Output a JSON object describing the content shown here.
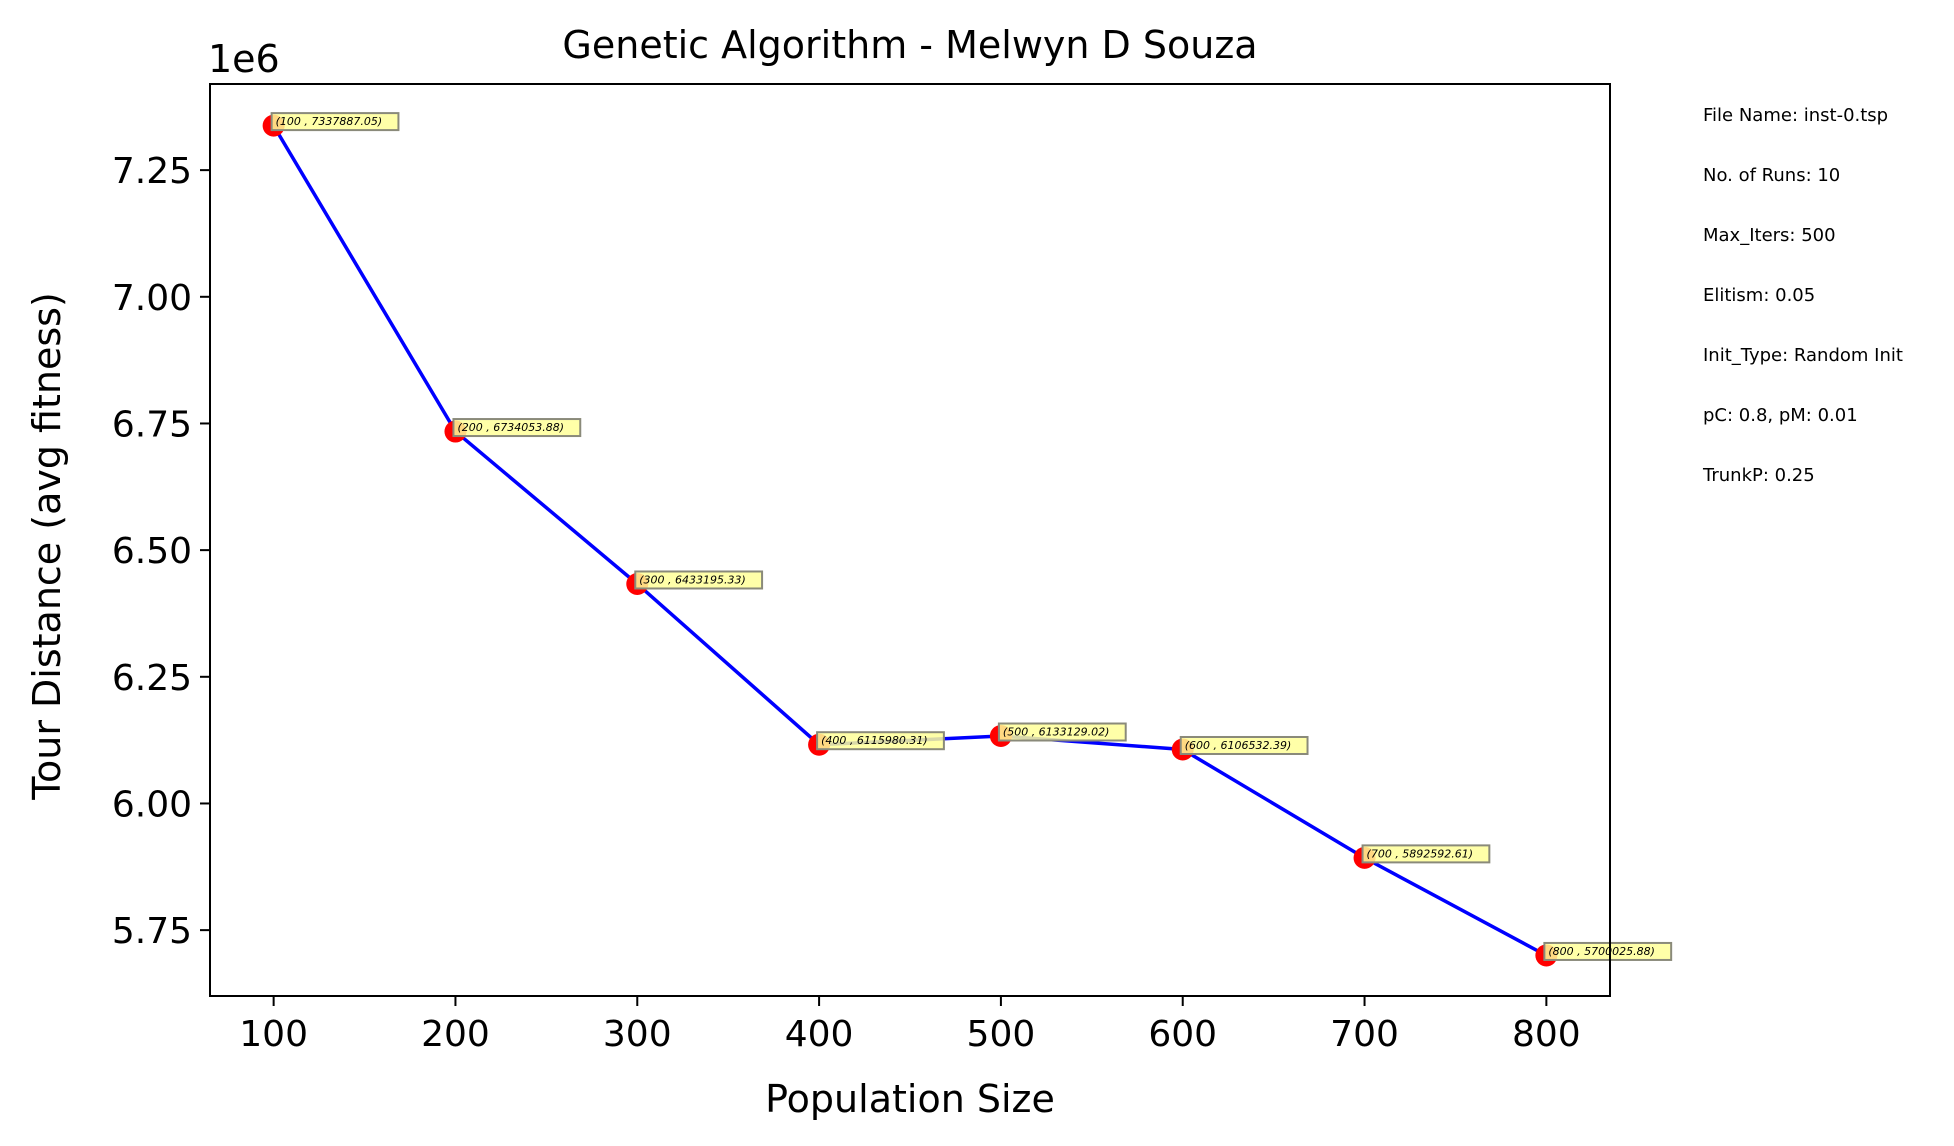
{
  "chart_data": {
    "type": "line",
    "title": "Genetic Algorithm - Melwyn D Souza",
    "xlabel": "Population Size",
    "ylabel": "Tour Distance (avg fitness)",
    "y_offset_label": "1e6",
    "xlim": [
      65,
      835
    ],
    "ylim": [
      5620000,
      7420000
    ],
    "x_ticks": [
      100,
      200,
      300,
      400,
      500,
      600,
      700,
      800
    ],
    "x_tick_labels": [
      "100",
      "200",
      "300",
      "400",
      "500",
      "600",
      "700",
      "800"
    ],
    "y_ticks": [
      5750000,
      6000000,
      6250000,
      6500000,
      6750000,
      7000000,
      7250000
    ],
    "y_tick_labels": [
      "5.75",
      "6.00",
      "6.25",
      "6.50",
      "6.75",
      "7.00",
      "7.25"
    ],
    "grid": false,
    "line_color": "#0000ff",
    "marker_color": "#ff0000",
    "label_box_color": "#ffff99",
    "series": [
      {
        "x": [
          100,
          200,
          300,
          400,
          500,
          600,
          700,
          800
        ],
        "y": [
          7337887.05,
          6734053.88,
          6433195.33,
          6115980.31,
          6133129.02,
          6106532.39,
          5892592.61,
          5700025.88
        ]
      }
    ],
    "point_labels": [
      "(100 , 7337887.05)",
      "(200 , 6734053.88)",
      "(300 , 6433195.33)",
      "(400 , 6115980.31)",
      "(500 , 6133129.02)",
      "(600 , 6106532.39)",
      "(700 , 5892592.61)",
      "(800 , 5700025.88)"
    ],
    "annotations": [
      "File Name: inst-0.tsp",
      "No. of Runs: 10",
      "Max_Iters: 500",
      "Elitism: 0.05",
      "Init_Type: Random Init",
      "pC: 0.8, pM: 0.01",
      "TrunkP: 0.25"
    ]
  }
}
